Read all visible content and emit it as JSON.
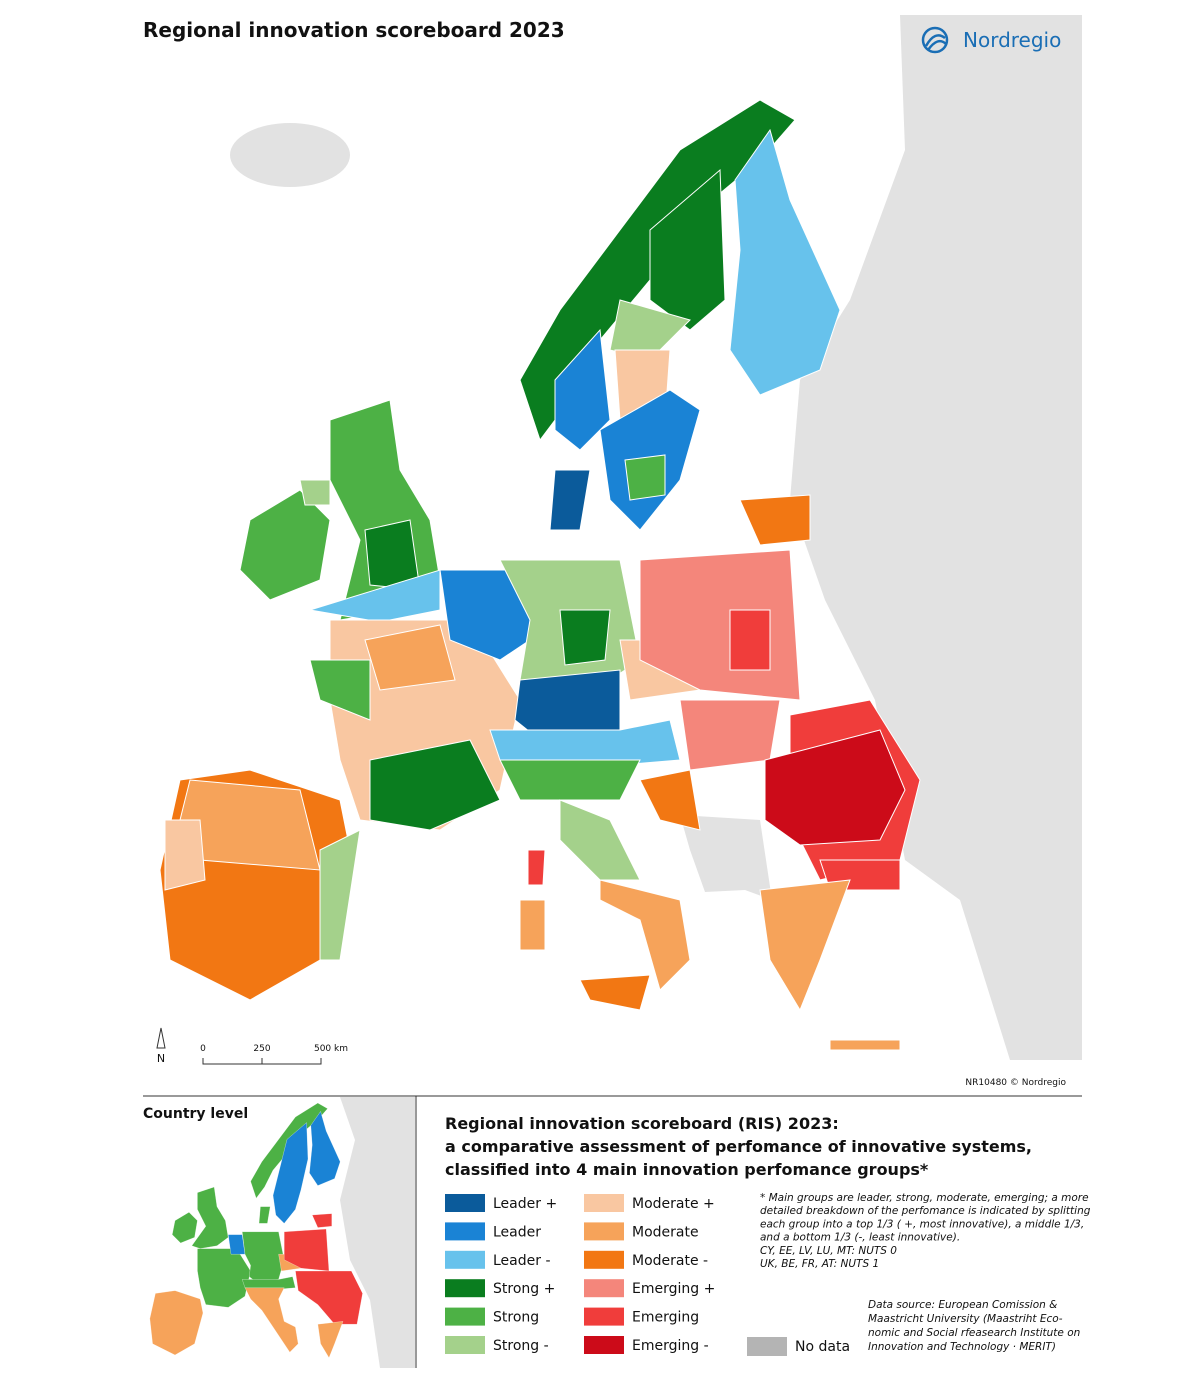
{
  "header": {
    "title": "Regional innovation scoreboard 2023",
    "logo": "Nordregio"
  },
  "map": {
    "north": "N",
    "scale": [
      "0",
      "250",
      "500 km"
    ],
    "credit": "NR10480 © Nordregio"
  },
  "inset": {
    "title": "Country level"
  },
  "legend": {
    "title": [
      "Regional innovation scoreboard (RIS) 2023:",
      "a comparative assessment of perfomance of innovative systems,",
      "classified into 4 main innovation perfomance groups*"
    ],
    "items": [
      {
        "label": "Leader +",
        "color": "#0b5b9b"
      },
      {
        "label": "Leader",
        "color": "#1a83d5"
      },
      {
        "label": "Leader -",
        "color": "#67c2ec"
      },
      {
        "label": "Strong +",
        "color": "#0a7d1f"
      },
      {
        "label": "Strong",
        "color": "#4db145"
      },
      {
        "label": "Strong -",
        "color": "#a4d18b"
      },
      {
        "label": "Moderate +",
        "color": "#f9c7a1"
      },
      {
        "label": "Moderate",
        "color": "#f6a35a"
      },
      {
        "label": "Moderate -",
        "color": "#f27713"
      },
      {
        "label": "Emerging +",
        "color": "#f4867b"
      },
      {
        "label": "Emerging",
        "color": "#f03d3b"
      },
      {
        "label": "Emerging -",
        "color": "#cc0b19"
      }
    ],
    "no_data": {
      "label": "No data",
      "color": "#b4b4b4"
    },
    "footnote": [
      "* Main groups are leader, strong, moderate, emerging; a more",
      "detailed breakdown of the perfomance is indicated by splitting",
      "each group into a top 1/3 ( +, most innovative), a middle 1/3,",
      "and a bottom 1/3 (-, least innovative).",
      "CY, EE, LV, LU, MT: NUTS 0",
      "UK, BE, FR, AT: NUTS 1"
    ],
    "source": [
      "Data source: European Comission &",
      "Maastricht University (Maastriht Eco-",
      "nomic and Social rfeasearch Institute on",
      "Innovation and Technology · MERIT)"
    ]
  }
}
